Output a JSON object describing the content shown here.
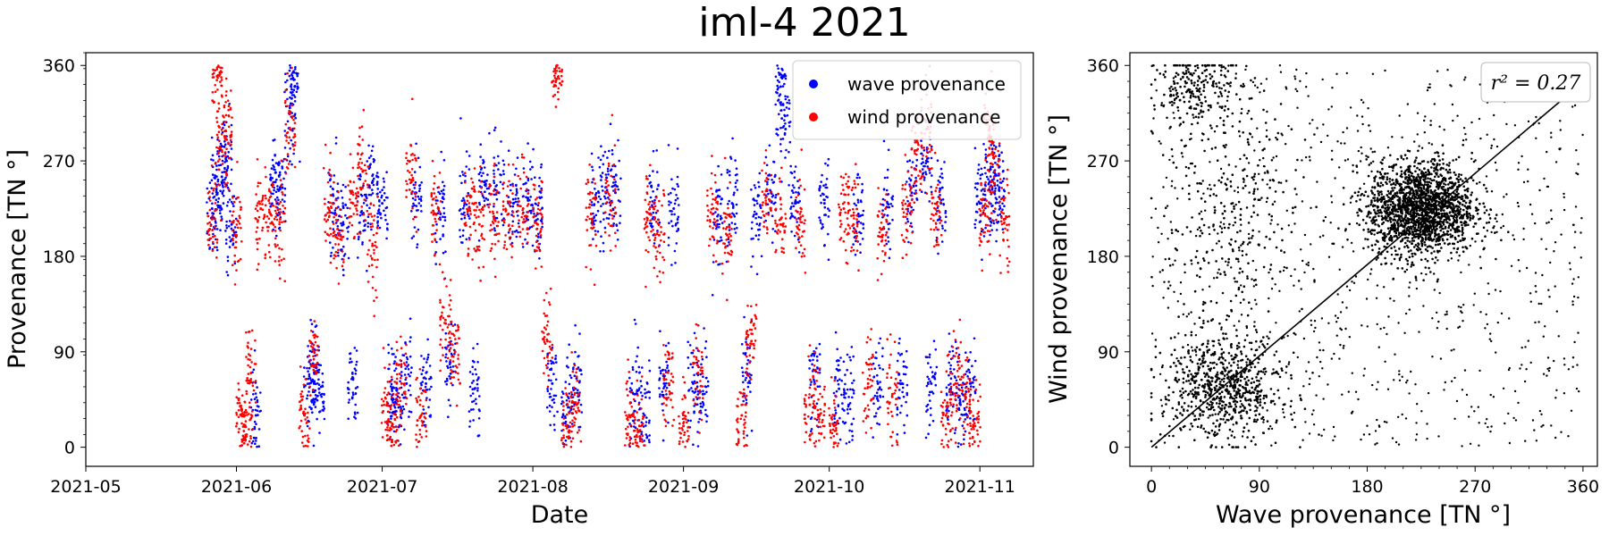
{
  "figure": {
    "title": "iml-4 2021"
  },
  "chart_data": [
    {
      "type": "scatter",
      "xlabel": "Date",
      "ylabel": "Provenance [TN °]",
      "xlim": [
        "2021-05-01",
        "2021-11-12"
      ],
      "ylim": [
        -18,
        372
      ],
      "x_ticks": [
        "2021-05",
        "2021-06",
        "2021-07",
        "2021-08",
        "2021-09",
        "2021-10",
        "2021-11"
      ],
      "y_ticks": [
        0,
        90,
        180,
        270,
        360
      ],
      "legend": {
        "position": "top-right",
        "entries": [
          "wave provenance",
          "wind provenance"
        ]
      },
      "colors": {
        "wave provenance": "#0000ff",
        "wind provenance": "#ff0000"
      },
      "series": [
        {
          "name": "wave provenance",
          "points": [
            [
              "2021-05-27",
              225
            ],
            [
              "2021-05-28",
              240
            ],
            [
              "2021-05-29",
              255
            ],
            [
              "2021-05-30",
              270
            ],
            [
              "2021-05-31",
              210
            ],
            [
              "2021-06-05",
              30
            ],
            [
              "2021-06-09",
              250
            ],
            [
              "2021-06-10",
              245
            ],
            [
              "2021-06-12",
              320
            ],
            [
              "2021-06-13",
              340
            ],
            [
              "2021-06-16",
              60
            ],
            [
              "2021-06-17",
              70
            ],
            [
              "2021-06-18",
              55
            ],
            [
              "2021-06-21",
              230
            ],
            [
              "2021-06-23",
              210
            ],
            [
              "2021-06-25",
              65
            ],
            [
              "2021-06-27",
              220
            ],
            [
              "2021-06-29",
              250
            ],
            [
              "2021-07-01",
              230
            ],
            [
              "2021-07-03",
              55
            ],
            [
              "2021-07-04",
              45
            ],
            [
              "2021-07-06",
              60
            ],
            [
              "2021-07-08",
              240
            ],
            [
              "2021-07-10",
              60
            ],
            [
              "2021-07-13",
              220
            ],
            [
              "2021-07-15",
              80
            ],
            [
              "2021-07-18",
              230
            ],
            [
              "2021-07-20",
              55
            ],
            [
              "2021-07-22",
              250
            ],
            [
              "2021-07-25",
              240
            ],
            [
              "2021-07-28",
              230
            ],
            [
              "2021-07-31",
              235
            ],
            [
              "2021-08-02",
              220
            ],
            [
              "2021-08-05",
              60
            ],
            [
              "2021-08-08",
              40
            ],
            [
              "2021-08-10",
              65
            ],
            [
              "2021-08-14",
              235
            ],
            [
              "2021-08-16",
              245
            ],
            [
              "2021-08-18",
              240
            ],
            [
              "2021-08-22",
              50
            ],
            [
              "2021-08-24",
              30
            ],
            [
              "2021-08-26",
              230
            ],
            [
              "2021-08-28",
              60
            ],
            [
              "2021-08-30",
              225
            ],
            [
              "2021-09-03",
              60
            ],
            [
              "2021-09-05",
              50
            ],
            [
              "2021-09-08",
              210
            ],
            [
              "2021-09-11",
              230
            ],
            [
              "2021-09-14",
              70
            ],
            [
              "2021-09-16",
              220
            ],
            [
              "2021-09-19",
              240
            ],
            [
              "2021-09-21",
              340
            ],
            [
              "2021-09-22",
              300
            ],
            [
              "2021-09-24",
              230
            ],
            [
              "2021-09-28",
              60
            ],
            [
              "2021-09-30",
              230
            ],
            [
              "2021-10-03",
              55
            ],
            [
              "2021-10-05",
              40
            ],
            [
              "2021-10-07",
              220
            ],
            [
              "2021-10-11",
              60
            ],
            [
              "2021-10-13",
              230
            ],
            [
              "2021-10-16",
              60
            ],
            [
              "2021-10-18",
              240
            ],
            [
              "2021-10-21",
              270
            ],
            [
              "2021-10-22",
              60
            ],
            [
              "2021-10-24",
              230
            ],
            [
              "2021-10-26",
              55
            ],
            [
              "2021-10-28",
              40
            ],
            [
              "2021-10-30",
              60
            ],
            [
              "2021-11-01",
              230
            ],
            [
              "2021-11-03",
              250
            ],
            [
              "2021-11-04",
              240
            ],
            [
              "2021-11-05",
              245
            ]
          ]
        },
        {
          "name": "wind provenance",
          "points": [
            [
              "2021-05-27",
              215
            ],
            [
              "2021-05-28",
              350
            ],
            [
              "2021-05-29",
              280
            ],
            [
              "2021-05-30",
              290
            ],
            [
              "2021-06-01",
              200
            ],
            [
              "2021-06-02",
              30
            ],
            [
              "2021-06-03",
              10
            ],
            [
              "2021-06-04",
              70
            ],
            [
              "2021-06-06",
              225
            ],
            [
              "2021-06-08",
              220
            ],
            [
              "2021-06-10",
              215
            ],
            [
              "2021-06-12",
              300
            ],
            [
              "2021-06-15",
              30
            ],
            [
              "2021-06-17",
              90
            ],
            [
              "2021-06-20",
              225
            ],
            [
              "2021-06-22",
              200
            ],
            [
              "2021-06-25",
              230
            ],
            [
              "2021-06-27",
              260
            ],
            [
              "2021-06-29",
              190
            ],
            [
              "2021-07-02",
              40
            ],
            [
              "2021-07-03",
              20
            ],
            [
              "2021-07-05",
              60
            ],
            [
              "2021-07-07",
              250
            ],
            [
              "2021-07-09",
              30
            ],
            [
              "2021-07-12",
              220
            ],
            [
              "2021-07-14",
              120
            ],
            [
              "2021-07-16",
              90
            ],
            [
              "2021-07-19",
              225
            ],
            [
              "2021-07-21",
              210
            ],
            [
              "2021-07-24",
              215
            ],
            [
              "2021-07-27",
              220
            ],
            [
              "2021-07-30",
              225
            ],
            [
              "2021-08-02",
              210
            ],
            [
              "2021-08-04",
              100
            ],
            [
              "2021-08-06",
              360
            ],
            [
              "2021-08-08",
              20
            ],
            [
              "2021-08-10",
              40
            ],
            [
              "2021-08-13",
              220
            ],
            [
              "2021-08-17",
              230
            ],
            [
              "2021-08-21",
              30
            ],
            [
              "2021-08-23",
              10
            ],
            [
              "2021-08-25",
              220
            ],
            [
              "2021-08-27",
              200
            ],
            [
              "2021-08-29",
              60
            ],
            [
              "2021-09-01",
              20
            ],
            [
              "2021-09-04",
              70
            ],
            [
              "2021-09-07",
              220
            ],
            [
              "2021-09-10",
              200
            ],
            [
              "2021-09-13",
              30
            ],
            [
              "2021-09-15",
              100
            ],
            [
              "2021-09-18",
              230
            ],
            [
              "2021-09-21",
              210
            ],
            [
              "2021-09-25",
              215
            ],
            [
              "2021-09-27",
              40
            ],
            [
              "2021-09-29",
              30
            ],
            [
              "2021-10-02",
              20
            ],
            [
              "2021-10-04",
              225
            ],
            [
              "2021-10-06",
              210
            ],
            [
              "2021-10-09",
              60
            ],
            [
              "2021-10-12",
              200
            ],
            [
              "2021-10-14",
              50
            ],
            [
              "2021-10-17",
              220
            ],
            [
              "2021-10-19",
              280
            ],
            [
              "2021-10-21",
              300
            ],
            [
              "2021-10-23",
              220
            ],
            [
              "2021-10-25",
              30
            ],
            [
              "2021-10-27",
              60
            ],
            [
              "2021-10-29",
              50
            ],
            [
              "2021-10-31",
              20
            ],
            [
              "2021-11-02",
              220
            ],
            [
              "2021-11-03",
              300
            ],
            [
              "2021-11-04",
              260
            ],
            [
              "2021-11-06",
              215
            ]
          ]
        }
      ]
    },
    {
      "type": "scatter",
      "xlabel": "Wave provenance [TN °]",
      "ylabel": "Wind provenance [TN °]",
      "xlim": [
        -18,
        372
      ],
      "ylim": [
        -18,
        372
      ],
      "x_ticks": [
        0,
        90,
        180,
        270,
        360
      ],
      "y_ticks": [
        0,
        90,
        180,
        270,
        360
      ],
      "annotation": "r² = 0.27",
      "colors": {
        "points": "#000000"
      },
      "regression_line": {
        "x": [
          0,
          345
        ],
        "y": [
          0,
          330
        ]
      },
      "clusters": [
        {
          "center": [
            225,
            225
          ],
          "spread": 22
        },
        {
          "center": [
            60,
            55
          ],
          "spread": 25
        },
        {
          "center": [
            40,
            340
          ],
          "spread": 18
        },
        {
          "center": [
            65,
            220
          ],
          "spread": 30
        }
      ]
    }
  ]
}
